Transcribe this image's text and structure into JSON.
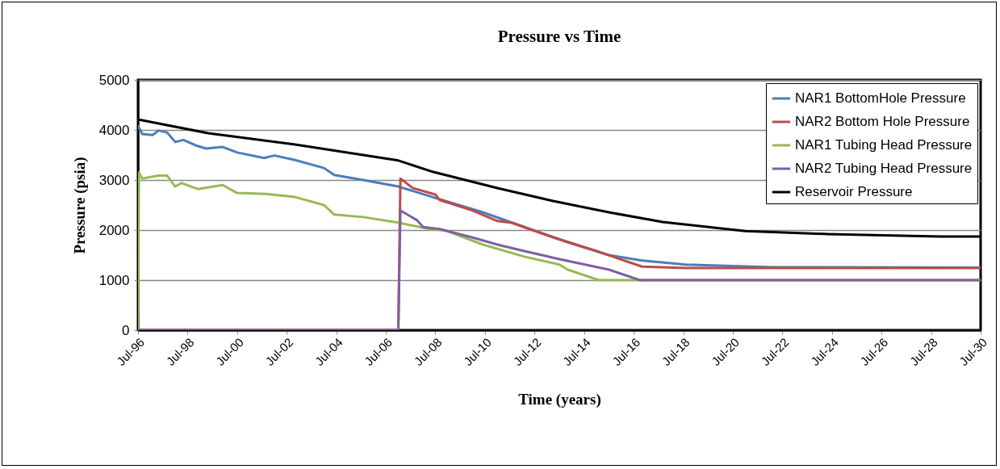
{
  "chart_data": {
    "type": "line",
    "title": "Pressure vs Time",
    "xlabel": "Time (years)",
    "ylabel": "Pressure (psia)",
    "xlim": [
      "1996-07",
      "2030-07"
    ],
    "xticks": [
      {
        "value": "1996-07",
        "label": "Jul-96"
      },
      {
        "value": "1998-07",
        "label": "Jul-98"
      },
      {
        "value": "2000-07",
        "label": "Jul-00"
      },
      {
        "value": "2002-07",
        "label": "Jul-02"
      },
      {
        "value": "2004-07",
        "label": "Jul-04"
      },
      {
        "value": "2006-07",
        "label": "Jul-06"
      },
      {
        "value": "2008-07",
        "label": "Jul-08"
      },
      {
        "value": "2010-07",
        "label": "Jul-10"
      },
      {
        "value": "2012-07",
        "label": "Jul-12"
      },
      {
        "value": "2014-07",
        "label": "Jul-14"
      },
      {
        "value": "2016-07",
        "label": "Jul-16"
      },
      {
        "value": "2018-07",
        "label": "Jul-18"
      },
      {
        "value": "2020-07",
        "label": "Jul-20"
      },
      {
        "value": "2022-07",
        "label": "Jul-22"
      },
      {
        "value": "2024-07",
        "label": "Jul-24"
      },
      {
        "value": "2026-07",
        "label": "Jul-26"
      },
      {
        "value": "2028-07",
        "label": "Jul-28"
      },
      {
        "value": "2030-07",
        "label": "Jul-30"
      }
    ],
    "ylim": [
      0,
      5000
    ],
    "yticks": [
      0,
      1000,
      2000,
      3000,
      4000,
      5000
    ],
    "grid": "y",
    "legend": "top right",
    "marker": "none",
    "line_style": "solid",
    "series": [
      {
        "name": "NAR1 BottomHole  Pressure",
        "color": "#4a7ebb",
        "x": [
          "1996-07",
          "1996-09",
          "1997-02",
          "1997-05",
          "1997-09",
          "1998-01",
          "1998-05",
          "1998-11",
          "1999-04",
          "1999-12",
          "2000-07",
          "2001-08",
          "2002-01",
          "2002-11",
          "2004-01",
          "2004-06",
          "2005-08",
          "2007-01",
          "2008-04",
          "2008-08",
          "2010-06",
          "2012-02",
          "2013-10",
          "2015-07",
          "2016-11",
          "2018-08",
          "2022-02",
          "2030-07"
        ],
        "values": [
          4080,
          3920,
          3900,
          3990,
          3950,
          3760,
          3800,
          3690,
          3630,
          3660,
          3550,
          3440,
          3490,
          3400,
          3240,
          3100,
          3000,
          2870,
          2680,
          2630,
          2355,
          2060,
          1770,
          1500,
          1390,
          1310,
          1260,
          1250
        ]
      },
      {
        "name": "NAR2 Bottom Hole Pressure",
        "color": "#be4b48",
        "x": [
          "1996-07",
          "2007-01",
          "2007-02",
          "2007-08",
          "2008-07",
          "2008-09",
          "2010-01",
          "2011-01",
          "2011-08",
          "2013-04",
          "2015-01",
          "2016-11",
          "2018-08",
          "2030-07"
        ],
        "values": [
          0,
          0,
          3030,
          2840,
          2710,
          2600,
          2390,
          2180,
          2145,
          1855,
          1580,
          1270,
          1240,
          1240
        ]
      },
      {
        "name": "NAR1 Tubing Head Pressure",
        "color": "#98b954",
        "x": [
          "1996-07",
          "1996-07-15",
          "1996-09",
          "1997-05",
          "1997-09",
          "1998-01",
          "1998-04",
          "1998-12",
          "1999-12",
          "2000-07",
          "2001-09",
          "2002-11",
          "2004-01",
          "2004-06",
          "2005-08",
          "2007-01",
          "2008-04",
          "2008-12",
          "2010-06",
          "2012-02",
          "2013-07",
          "2013-11",
          "2015-02",
          "2030-07"
        ],
        "values": [
          0,
          3150,
          3030,
          3090,
          3090,
          2870,
          2940,
          2820,
          2900,
          2740,
          2720,
          2660,
          2500,
          2310,
          2260,
          2150,
          2020,
          1990,
          1710,
          1470,
          1310,
          1210,
          1000,
          1000
        ]
      },
      {
        "name": "NAR2 Tubing Head Pressure",
        "color": "#7d60a0",
        "x": [
          "1996-07",
          "2007-01",
          "2007-02",
          "2007-10",
          "2008-01",
          "2008-09",
          "2010-01",
          "2011-01",
          "2012-02",
          "2013-07",
          "2015-07",
          "2016-10",
          "2030-07"
        ],
        "values": [
          0,
          0,
          2390,
          2200,
          2060,
          2020,
          1850,
          1710,
          1580,
          1420,
          1210,
          1000,
          1000
        ]
      },
      {
        "name": "Reservoir Pressure",
        "color": "#000000",
        "x": [
          "1996-07",
          "1999-05",
          "2002-11",
          "2007-01",
          "2008-06",
          "2011-01",
          "2013-04",
          "2015-07",
          "2017-09",
          "2021-01",
          "2024-05",
          "2028-11",
          "2030-07"
        ],
        "values": [
          4210,
          3935,
          3710,
          3390,
          3160,
          2840,
          2580,
          2355,
          2160,
          1980,
          1920,
          1870,
          1870
        ]
      }
    ]
  }
}
